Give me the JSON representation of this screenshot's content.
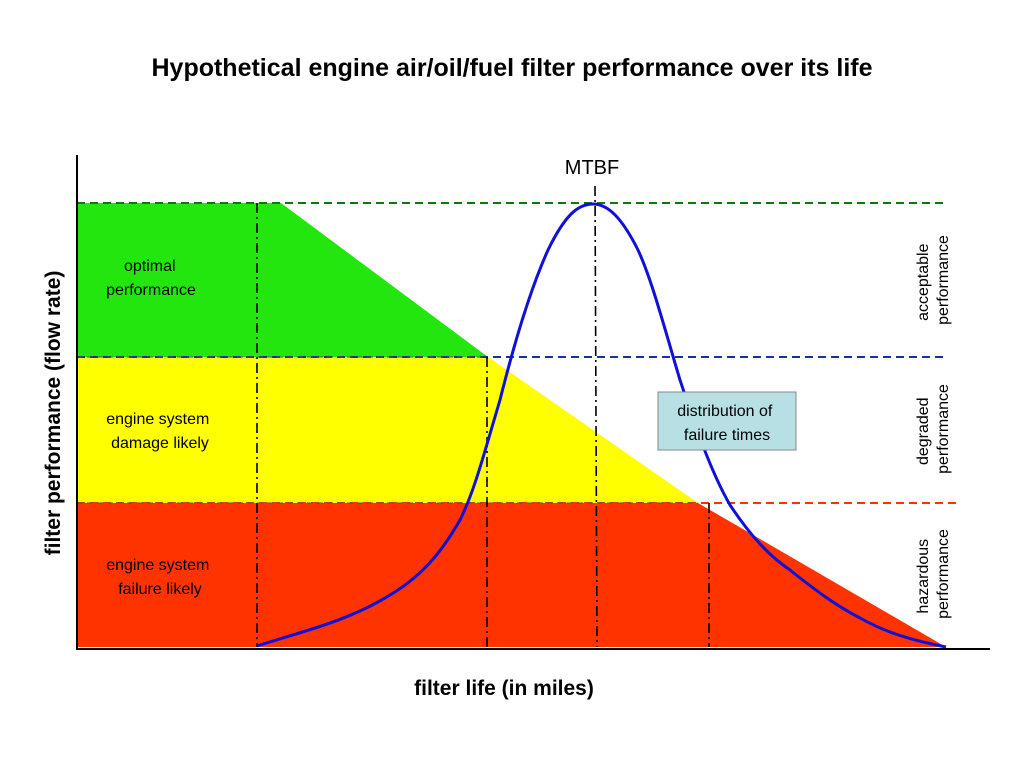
{
  "title": "Hypothetical engine air/oil/fuel filter performance over its life",
  "x_axis_label": "filter life (in miles)",
  "y_axis_label": "filter performance (flow rate)",
  "zones": [
    {
      "lines": [
        "optimal",
        "performance"
      ],
      "color": "#22e60e"
    },
    {
      "lines": [
        "engine system",
        "damage likely"
      ],
      "color": "#ffff00"
    },
    {
      "lines": [
        "engine system",
        "failure likely"
      ],
      "color": "#ff3300"
    }
  ],
  "threshold_lines": [
    {
      "name": "acceptable",
      "color": "#0a7a0a"
    },
    {
      "name": "degraded",
      "color": "#1a2e9e"
    },
    {
      "name": "hazardous",
      "color": "#ff3300"
    }
  ],
  "side_labels": [
    [
      "acceptable",
      "performance"
    ],
    [
      "degraded",
      "performance"
    ],
    [
      "hazardous",
      "performance"
    ]
  ],
  "mtbf_label": "MTBF",
  "distribution_box": {
    "lines": [
      "distribution of",
      "failure times"
    ],
    "fill": "#b7e0e4"
  },
  "curve_color": "#1010d8"
}
